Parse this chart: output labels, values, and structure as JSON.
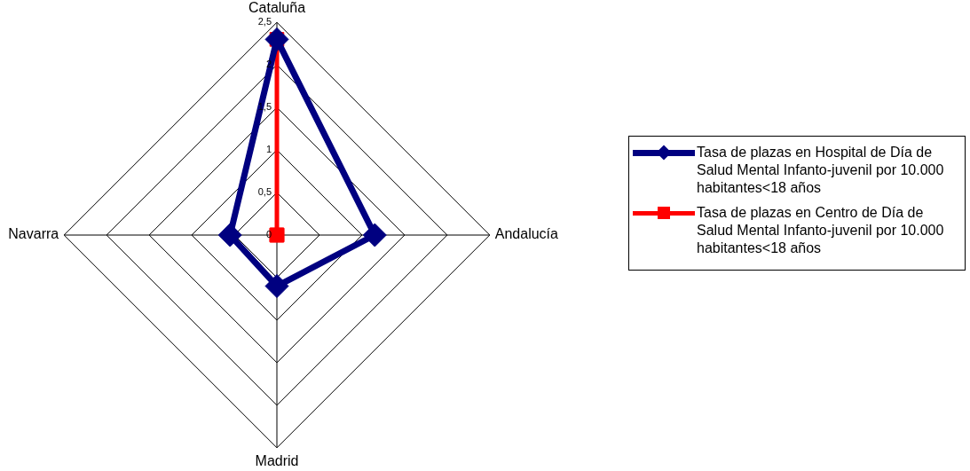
{
  "chart_data": {
    "type": "radar",
    "categories": [
      "Cataluña",
      "Andalucía",
      "Madrid",
      "Navarra"
    ],
    "series": [
      {
        "name": "Tasa de plazas en Hospital de Día de Salud Mental Infanto-juvenil por 10.000 habitantes<18 años",
        "color": "#000080",
        "values": [
          2.3,
          1.15,
          0.6,
          0.55
        ],
        "marker": "diamond"
      },
      {
        "name": "Tasa de plazas en Centro de Día de Salud Mental Infanto-juvenil por 10.000 habitantes<18 años",
        "color": "#ff0000",
        "values": [
          2.3,
          0,
          0,
          0
        ],
        "marker": "square"
      }
    ],
    "ylim": [
      0,
      2.5
    ],
    "yticks": [
      0,
      {
        "value": 0.5,
        "label": "0,5"
      },
      1,
      {
        "value": 1.5,
        "label": "1,5"
      },
      2,
      {
        "value": 2.5,
        "label": "2,5"
      }
    ],
    "grid": true,
    "legend": "right"
  }
}
